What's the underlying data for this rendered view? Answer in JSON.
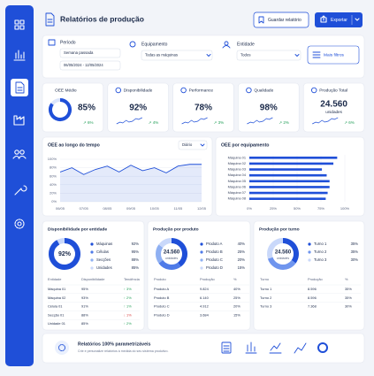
{
  "header": {
    "title": "Relatórios de produção",
    "save_button": "Guardar relatório",
    "export_button": "Exportar"
  },
  "filters": {
    "period_label": "Período",
    "period_value": "Semana passada",
    "date_range": "06/05/2024 - 12/05/2024",
    "equipment_label": "Equipamento",
    "equipment_value": "Todas as máquinas",
    "entity_label": "Entidade",
    "entity_value": "Todos",
    "more_filters": "Mais filtros"
  },
  "kpis": [
    {
      "label": "OEE Médio",
      "value": 85,
      "value_label": "85%",
      "trend": "6%"
    },
    {
      "label": "Disponibilidade",
      "value_label": "92%",
      "trend": "4%"
    },
    {
      "label": "Performance",
      "value_label": "78%",
      "trend": "3%"
    },
    {
      "label": "Qualidade",
      "value_label": "98%",
      "trend": "2%"
    },
    {
      "label": "Produção Total",
      "value_label": "24.560",
      "unit": "unidades",
      "trend": "6%"
    }
  ],
  "line_chart": {
    "title": "OEE ao longo do tempo",
    "period": "Diário",
    "categories": [
      "06/05",
      null,
      "07/05",
      null,
      "08/05",
      null,
      "09/05",
      null,
      "10/05",
      null,
      "11/05",
      null,
      "12/05"
    ],
    "values": [
      70,
      80,
      64,
      76,
      84,
      70,
      86,
      73,
      80,
      68,
      84,
      88,
      88
    ],
    "ylim": [
      0,
      100
    ],
    "yticks": [
      {
        "value": 0,
        "label": "0%"
      },
      {
        "value": 20,
        "label": "20%"
      },
      {
        "value": 40,
        "label": "40%"
      },
      {
        "value": 60,
        "label": "60%"
      },
      {
        "value": 80,
        "label": "80%"
      },
      {
        "value": 100,
        "label": "100%"
      }
    ],
    "color": "#1f4fd8",
    "grid": true
  },
  "bar_chart": {
    "title": "OEE por equipamento",
    "categories": [
      "Máquina 01",
      "Máquina 02",
      "Máquina 03",
      "Máquina 04",
      "Máquina 05",
      "Máquina 06",
      "Máquina 07",
      "Máquina 08"
    ],
    "values": [
      92,
      88,
      76,
      81,
      84,
      84,
      82,
      80
    ],
    "xlim": [
      0,
      100
    ],
    "xticks": [
      {
        "value": 0,
        "label": "0%"
      },
      {
        "value": 25,
        "label": "25%"
      },
      {
        "value": 50,
        "label": "50%"
      },
      {
        "value": 75,
        "label": "75%"
      },
      {
        "value": 100,
        "label": "100%"
      }
    ],
    "color": "#1f4fd8",
    "grid": true
  },
  "availability": {
    "title": "Disponibilidade por entidade",
    "value": 92,
    "value_label": "92%",
    "legend": [
      {
        "name": "Máquinas",
        "value_label": "92%",
        "color": "#1f4fd8"
      },
      {
        "name": "Células",
        "value_label": "95%",
        "color": "#4f7be8"
      },
      {
        "name": "Secções",
        "value_label": "88%",
        "color": "#8fb0f2"
      },
      {
        "name": "Unidades",
        "value_label": "85%",
        "color": "#c9d8fa"
      }
    ],
    "columns": [
      "Entidade",
      "Disponibilidade",
      "Tendência"
    ],
    "rows": [
      [
        "Máquina 01",
        "95%",
        "↑ 3%"
      ],
      [
        "Máquina 02",
        "93%",
        "↑ 2%"
      ],
      [
        "Célula 01",
        "91%",
        "↑ 1%"
      ],
      [
        "Secção 01",
        "88%",
        "↓ 1%"
      ],
      [
        "Unidade 01",
        "85%",
        "↑ 2%"
      ]
    ]
  },
  "production_product": {
    "title": "Produção por produto",
    "total": "24.560",
    "unit": "unidades",
    "legend": [
      {
        "name": "Produto A",
        "share": 40,
        "share_label": "40%",
        "color": "#1f4fd8"
      },
      {
        "name": "Produto B",
        "share": 25,
        "share_label": "25%",
        "color": "#4f7be8"
      },
      {
        "name": "Produto C",
        "share": 20,
        "share_label": "20%",
        "color": "#8fb0f2"
      },
      {
        "name": "Produto D",
        "share": 15,
        "share_label": "15%",
        "color": "#c9d8fa"
      }
    ],
    "columns": [
      "Produto",
      "Produção",
      "%"
    ],
    "rows": [
      [
        "Produto A",
        "9.824",
        "40%"
      ],
      [
        "Produto B",
        "6.140",
        "25%"
      ],
      [
        "Produto C",
        "4.912",
        "20%"
      ],
      [
        "Produto D",
        "3.684",
        "15%"
      ]
    ]
  },
  "production_shift": {
    "title": "Produção por turno",
    "total": "24.560",
    "unit": "unidades",
    "legend": [
      {
        "name": "Turno 1",
        "share": 35,
        "share_label": "35%",
        "color": "#1f4fd8"
      },
      {
        "name": "Turno 2",
        "share": 35,
        "share_label": "35%",
        "color": "#6f95ee"
      },
      {
        "name": "Turno 3",
        "share": 30,
        "share_label": "30%",
        "color": "#c9d8fa"
      }
    ],
    "columns": [
      "Turno",
      "Produção",
      "%"
    ],
    "rows": [
      [
        "Turno 1",
        "8.596",
        "35%"
      ],
      [
        "Turno 2",
        "8.596",
        "35%"
      ],
      [
        "Turno 3",
        "7.368",
        "30%"
      ]
    ]
  },
  "footer": {
    "title": "Relatórios 100% parametrizáveis",
    "text": "Crie e personalize relatórios à medida do seu sistema produtivo."
  }
}
